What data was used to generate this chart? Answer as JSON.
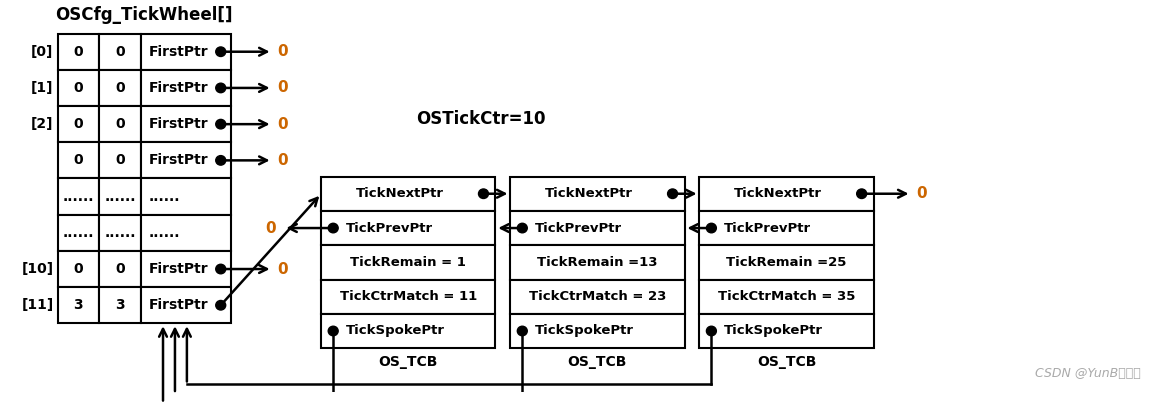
{
  "title": "OSCfg_TickWheel[]",
  "ostick_label": "OSTickCtr=10",
  "table_rows": [
    {
      "label": "[0]",
      "c1": "0",
      "c2": "0",
      "c3": "FirstPtr",
      "has_dot": true,
      "arrow_to_zero": true
    },
    {
      "label": "[1]",
      "c1": "0",
      "c2": "0",
      "c3": "FirstPtr",
      "has_dot": true,
      "arrow_to_zero": true
    },
    {
      "label": "[2]",
      "c1": "0",
      "c2": "0",
      "c3": "FirstPtr",
      "has_dot": true,
      "arrow_to_zero": true
    },
    {
      "label": "",
      "c1": "0",
      "c2": "0",
      "c3": "FirstPtr",
      "has_dot": true,
      "arrow_to_zero": true
    },
    {
      "label": "",
      "c1": "......",
      "c2": "......",
      "c3": "......",
      "has_dot": false,
      "arrow_to_zero": false
    },
    {
      "label": "",
      "c1": "......",
      "c2": "......",
      "c3": "......",
      "has_dot": false,
      "arrow_to_zero": false
    },
    {
      "label": "[10]",
      "c1": "0",
      "c2": "0",
      "c3": "FirstPtr",
      "has_dot": true,
      "arrow_to_zero": true
    },
    {
      "label": "[11]",
      "c1": "3",
      "c2": "3",
      "c3": "FirstPtr",
      "has_dot": true,
      "arrow_to_zero": false
    }
  ],
  "tcb_configs": [
    {
      "tickremain": "TickRemain = 1",
      "tickctrmatch": "TickCtrMatch = 11"
    },
    {
      "tickremain": "TickRemain =13",
      "tickctrmatch": "TickCtrMatch = 23"
    },
    {
      "tickremain": "TickRemain =25",
      "tickctrmatch": "TickCtrMatch = 35"
    }
  ],
  "watermark": "CSDN @YunB西风英",
  "bg_color": "#ffffff",
  "text_color": "#000000",
  "zero_color": "#cc6600"
}
